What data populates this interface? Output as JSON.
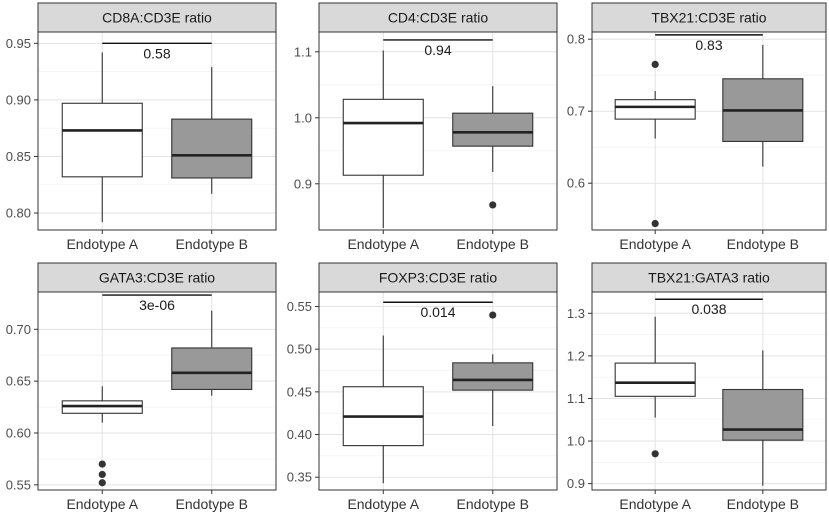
{
  "chart_data": [
    {
      "type": "boxplot",
      "title": "CD8A:CD3E ratio",
      "categories": [
        "Endotype A",
        "Endotype B"
      ],
      "ylim": [
        0.785,
        0.96
      ],
      "yticks": [
        0.8,
        0.85,
        0.9,
        0.95
      ],
      "ytick_labels": [
        "0.80",
        "0.85",
        "0.90",
        "0.95"
      ],
      "boxes": [
        {
          "name": "Endotype A",
          "lower": 0.792,
          "q1": 0.832,
          "median": 0.873,
          "q3": 0.897,
          "upper": 0.942,
          "outliers": [],
          "fill": "#ffffff"
        },
        {
          "name": "Endotype B",
          "lower": 0.817,
          "q1": 0.831,
          "median": 0.851,
          "q3": 0.883,
          "upper": 0.929,
          "outliers": [],
          "fill": "#999999"
        }
      ],
      "p_value": "0.58",
      "bracket_y": 0.95
    },
    {
      "type": "boxplot",
      "title": "CD4:CD3E ratio",
      "categories": [
        "Endotype A",
        "Endotype B"
      ],
      "ylim": [
        0.83,
        1.13
      ],
      "yticks": [
        0.9,
        1.0,
        1.1
      ],
      "ytick_labels": [
        "0.9",
        "1.0",
        "1.1"
      ],
      "boxes": [
        {
          "name": "Endotype A",
          "lower": 0.833,
          "q1": 0.913,
          "median": 0.992,
          "q3": 1.028,
          "upper": 1.102,
          "outliers": [],
          "fill": "#ffffff"
        },
        {
          "name": "Endotype B",
          "lower": 0.918,
          "q1": 0.957,
          "median": 0.978,
          "q3": 1.007,
          "upper": 1.048,
          "outliers": [
            0.868
          ],
          "fill": "#999999"
        }
      ],
      "p_value": "0.94",
      "bracket_y": 1.118
    },
    {
      "type": "boxplot",
      "title": "TBX21:CD3E ratio",
      "categories": [
        "Endotype A",
        "Endotype B"
      ],
      "ylim": [
        0.535,
        0.81
      ],
      "yticks": [
        0.6,
        0.7,
        0.8
      ],
      "ytick_labels": [
        "0.6",
        "0.7",
        "0.8"
      ],
      "boxes": [
        {
          "name": "Endotype A",
          "lower": 0.662,
          "q1": 0.689,
          "median": 0.706,
          "q3": 0.716,
          "upper": 0.728,
          "outliers": [
            0.765,
            0.544
          ],
          "fill": "#ffffff"
        },
        {
          "name": "Endotype B",
          "lower": 0.623,
          "q1": 0.658,
          "median": 0.701,
          "q3": 0.745,
          "upper": 0.792,
          "outliers": [],
          "fill": "#999999"
        }
      ],
      "p_value": "0.83",
      "bracket_y": 0.806
    },
    {
      "type": "boxplot",
      "title": "GATA3:CD3E ratio",
      "categories": [
        "Endotype A",
        "Endotype B"
      ],
      "ylim": [
        0.545,
        0.736
      ],
      "yticks": [
        0.55,
        0.6,
        0.65,
        0.7
      ],
      "ytick_labels": [
        "0.55",
        "0.60",
        "0.65",
        "0.70"
      ],
      "boxes": [
        {
          "name": "Endotype A",
          "lower": 0.61,
          "q1": 0.619,
          "median": 0.626,
          "q3": 0.631,
          "upper": 0.645,
          "outliers": [
            0.57,
            0.56,
            0.552
          ],
          "fill": "#ffffff"
        },
        {
          "name": "Endotype B",
          "lower": 0.636,
          "q1": 0.642,
          "median": 0.658,
          "q3": 0.682,
          "upper": 0.718,
          "outliers": [],
          "fill": "#999999"
        }
      ],
      "p_value": "3e-06",
      "bracket_y": 0.733
    },
    {
      "type": "boxplot",
      "title": "FOXP3:CD3E ratio",
      "categories": [
        "Endotype A",
        "Endotype B"
      ],
      "ylim": [
        0.335,
        0.567
      ],
      "yticks": [
        0.35,
        0.4,
        0.45,
        0.5,
        0.55
      ],
      "ytick_labels": [
        "0.35",
        "0.40",
        "0.45",
        "0.50",
        "0.55"
      ],
      "boxes": [
        {
          "name": "Endotype A",
          "lower": 0.343,
          "q1": 0.387,
          "median": 0.421,
          "q3": 0.456,
          "upper": 0.516,
          "outliers": [],
          "fill": "#ffffff"
        },
        {
          "name": "Endotype B",
          "lower": 0.41,
          "q1": 0.452,
          "median": 0.464,
          "q3": 0.484,
          "upper": 0.494,
          "outliers": [
            0.54
          ],
          "fill": "#999999"
        }
      ],
      "p_value": "0.014",
      "bracket_y": 0.555
    },
    {
      "type": "boxplot",
      "title": "TBX21:GATA3 ratio",
      "categories": [
        "Endotype A",
        "Endotype B"
      ],
      "ylim": [
        0.885,
        1.35
      ],
      "yticks": [
        0.9,
        1.0,
        1.1,
        1.2,
        1.3
      ],
      "ytick_labels": [
        "0.9",
        "1.0",
        "1.1",
        "1.2",
        "1.3"
      ],
      "boxes": [
        {
          "name": "Endotype A",
          "lower": 1.055,
          "q1": 1.105,
          "median": 1.137,
          "q3": 1.183,
          "upper": 1.292,
          "outliers": [
            0.97
          ],
          "fill": "#ffffff"
        },
        {
          "name": "Endotype B",
          "lower": 0.895,
          "q1": 1.002,
          "median": 1.027,
          "q3": 1.121,
          "upper": 1.213,
          "outliers": [],
          "fill": "#999999"
        }
      ],
      "p_value": "0.038",
      "bracket_y": 1.333
    }
  ]
}
